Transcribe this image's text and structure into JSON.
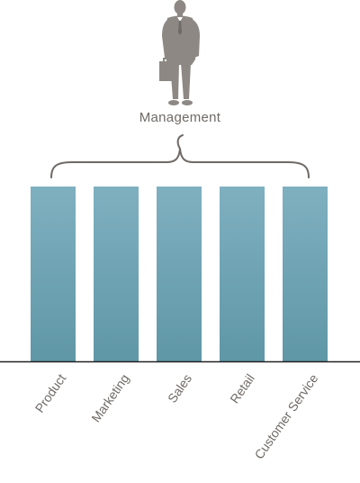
{
  "management": {
    "label": "Management",
    "figure_icon": "businessman-with-briefcase-icon",
    "brace_icon": "curly-brace-icon"
  },
  "departments": [
    {
      "label": "Product"
    },
    {
      "label": "Marketing"
    },
    {
      "label": "Sales"
    },
    {
      "label": "Retail"
    },
    {
      "label": "Customer Service"
    }
  ],
  "colors": {
    "bar_top": "#7fb0c0",
    "bar_bottom": "#5f97a7",
    "text": "#6f6a66",
    "figure": "#8d8883",
    "brace": "#6f6a66",
    "baseline": "#222222"
  }
}
